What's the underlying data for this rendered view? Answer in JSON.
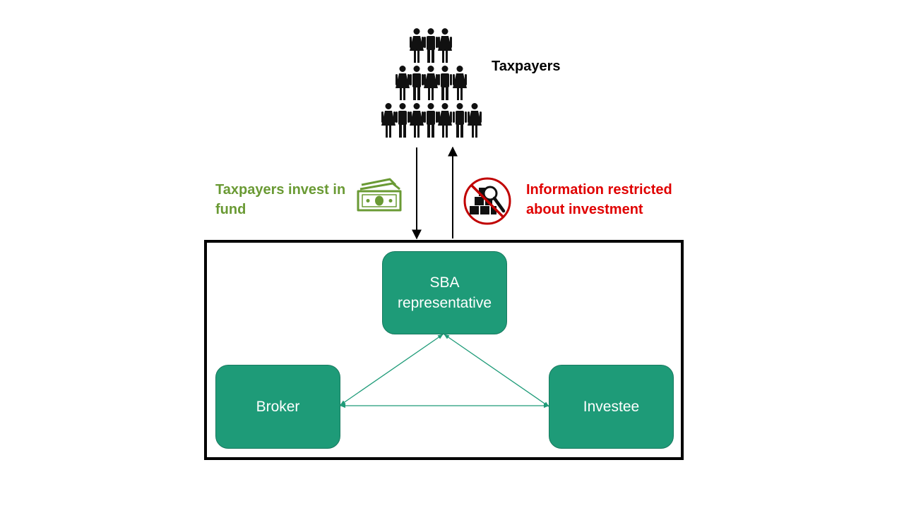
{
  "colors": {
    "node_fill": "#1e9b78",
    "connector": "#1e9b78",
    "invest_text": "#6a9a34",
    "restricted_text": "#e00000",
    "prohibit_sign": "#c00000",
    "arrow": "#000000"
  },
  "icons": {
    "people": "crowd-of-people-icon",
    "money": "banknote-icon",
    "restricted": "no-information-search-icon"
  },
  "labels": {
    "taxpayers": "Taxpayers",
    "invest": "Taxpayers invest in fund",
    "restricted": "Information restricted about investment"
  },
  "nodes": {
    "sba": "SBA representative",
    "broker": "Broker",
    "investee": "Investee"
  }
}
